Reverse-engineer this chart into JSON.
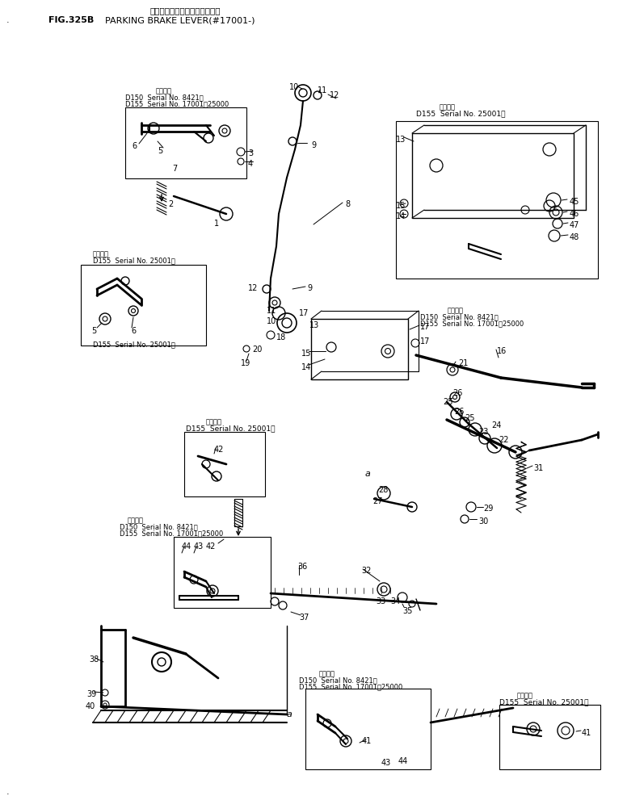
{
  "title_japanese": "パーキング　ブレーキ　レバー",
  "title_fig": "FIG.325B",
  "title_english": "PARKING BRAKE LEVER(#17001-)",
  "bg_color": "#ffffff",
  "ann_tl_kanji": "適用号績",
  "ann_tl_d150": "D150  Serial No. 8421〜",
  "ann_tl_d155": "D155  Serial No. 17001〜25000",
  "ann_tr_kanji": "適用号機",
  "ann_tr_d155": "D155  Serial No. 25001〜",
  "ann_ml_kanji": "適用号績",
  "ann_ml_d155": "D155  Serial No. 25001〜",
  "ann_mr_kanji": "適用号機",
  "ann_mr_d150": "D150  Serial No. 8421〜",
  "ann_mr_d155": "D155  Serial No. 17001〜25000",
  "ann_ll1_kanji": "適用号績",
  "ann_ll1_d155": "D155  Serial No. 25001〜",
  "ann_ll2_kanji": "適用号績",
  "ann_ll2_d150": "D150  Serial No. 8421〜",
  "ann_ll2_d155": "D155  Serial No. 17001〜25000",
  "ann_bc_kanji": "適用号績",
  "ann_bc_d150": "D150  Serial No. 8421〜",
  "ann_bc_d155": "D155  Serial No. 17001〜25000",
  "ann_br_kanji": "適用号績",
  "ann_br_d155": "D155  Serial No. 25001〜"
}
